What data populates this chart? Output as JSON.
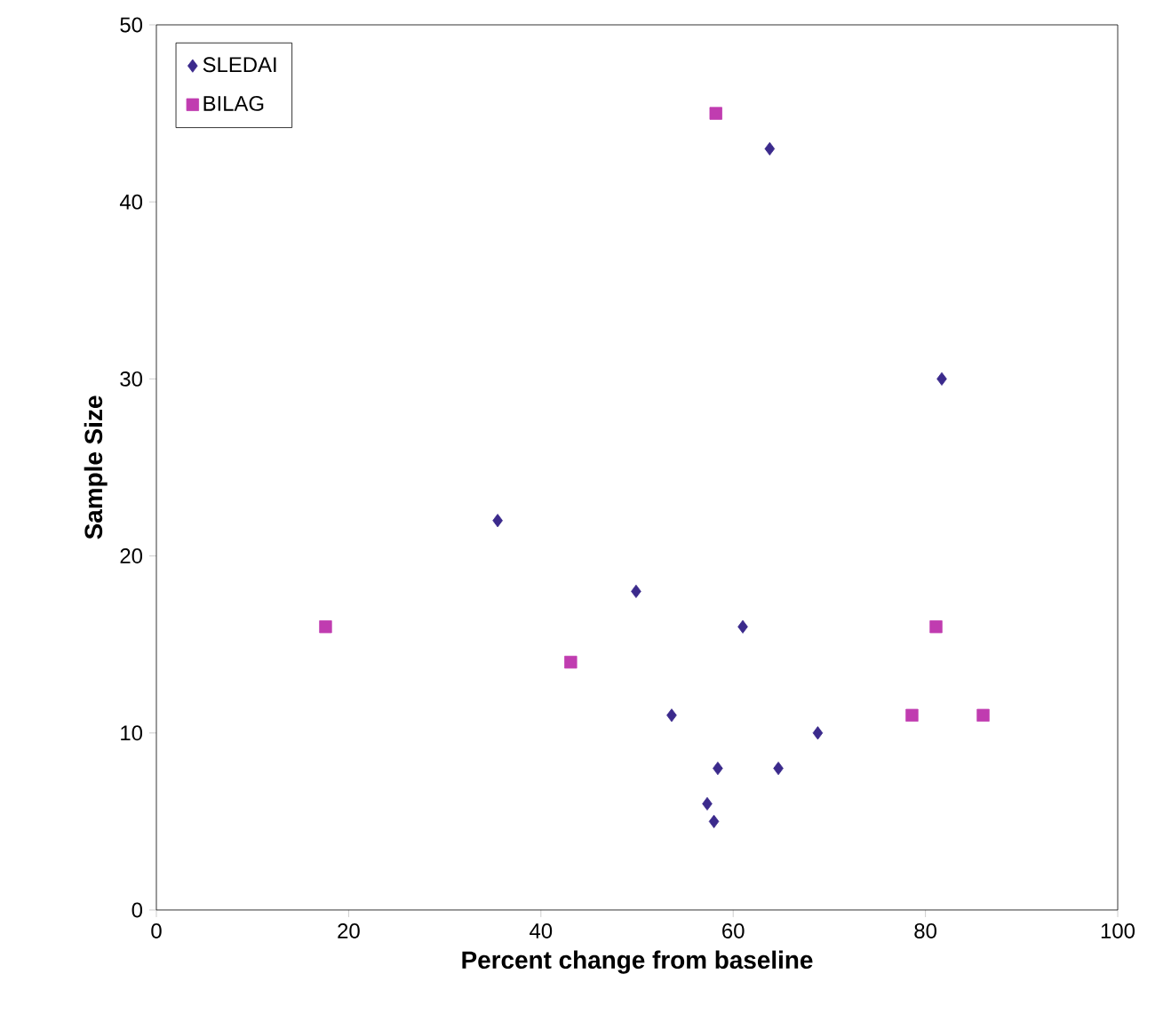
{
  "chart_data": {
    "type": "scatter",
    "xlabel": "Percent change from baseline",
    "ylabel": "Sample Size",
    "xlim": [
      0,
      100
    ],
    "ylim": [
      0,
      50
    ],
    "xticks": [
      0,
      20,
      40,
      60,
      80,
      100
    ],
    "yticks": [
      0,
      10,
      20,
      30,
      40,
      50
    ],
    "grid": false,
    "legend": "top left",
    "series": [
      {
        "name": "SLEDAI",
        "color": "#3b2a8c",
        "marker": "diamond",
        "x": [
          63.8,
          81.7,
          35.5,
          49.9,
          61.0,
          53.6,
          68.8,
          58.4,
          64.7,
          57.3,
          58.0
        ],
        "values": [
          43,
          30,
          22,
          18,
          16,
          11,
          10,
          8,
          8,
          6,
          5
        ]
      },
      {
        "name": "BILAG",
        "color": "#c03cb0",
        "marker": "square",
        "x": [
          58.2,
          17.6,
          43.1,
          81.1,
          78.6,
          86.0
        ],
        "values": [
          45,
          16,
          14,
          16,
          11,
          11
        ]
      }
    ]
  }
}
